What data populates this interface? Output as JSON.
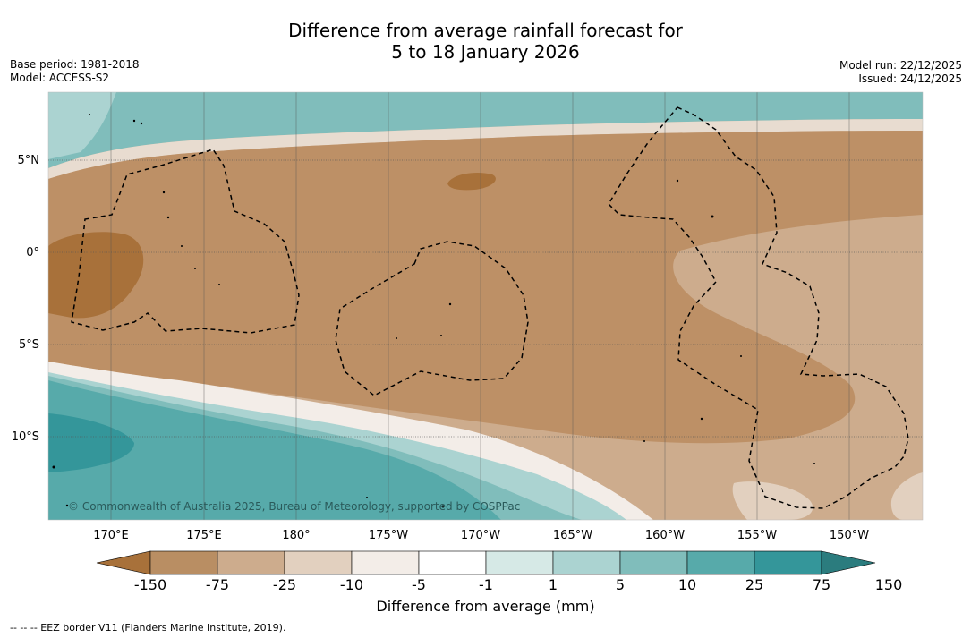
{
  "title": {
    "line1": "Difference from average rainfall forecast for",
    "line2": "5 to 18 January 2026"
  },
  "meta": {
    "base_period": "Base period: 1981-2018",
    "model": "Model: ACCESS-S2",
    "model_run": "Model run: 22/12/2025",
    "issued": "Issued: 24/12/2025"
  },
  "map": {
    "copyright": "© Commonwealth of Australia 2025, Bureau of Meteorology, supported by COSPPac",
    "lon_labels": [
      "170°E",
      "175°E",
      "180°",
      "175°W",
      "170°W",
      "165°W",
      "160°W",
      "155°W",
      "150°W"
    ],
    "lat_labels": [
      "5°N",
      "0°",
      "5°S",
      "10°S"
    ]
  },
  "colorbar": {
    "title": "Difference from average (mm)",
    "ticks": [
      "-150",
      "-75",
      "-25",
      "-10",
      "-5",
      "-1",
      "1",
      "5",
      "10",
      "25",
      "75",
      "150"
    ],
    "colors": [
      "#a8713a",
      "#b98e63",
      "#cdac8d",
      "#e2d0bf",
      "#f3ede8",
      "#ffffff",
      "#d6e9e6",
      "#abd3d1",
      "#80bdbb",
      "#57aaaa",
      "#34969a",
      "#2b7c7e"
    ]
  },
  "legend_note": "--  --  -- EEZ border V11 (Flanders Marine Institute, 2019)."
}
